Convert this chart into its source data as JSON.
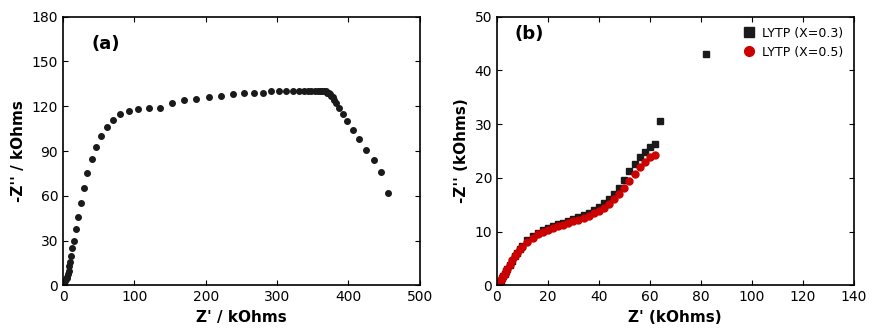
{
  "plot_a": {
    "label": "(a)",
    "xlabel": "Z' / kOhms",
    "ylabel": "-Z'' / kOhms",
    "xlim": [
      0,
      500
    ],
    "ylim": [
      0,
      180
    ],
    "xticks": [
      0,
      100,
      200,
      300,
      400,
      500
    ],
    "yticks": [
      0,
      30,
      60,
      90,
      120,
      150,
      180
    ],
    "color": "#1a1a1a",
    "marker": "o",
    "markersize": 4,
    "x": [
      1,
      2,
      3,
      4,
      5,
      6,
      7,
      8,
      9,
      10,
      11,
      13,
      15,
      18,
      21,
      25,
      29,
      34,
      40,
      46,
      53,
      61,
      70,
      80,
      92,
      105,
      120,
      136,
      153,
      170,
      187,
      205,
      222,
      238,
      253,
      267,
      280,
      292,
      303,
      313,
      322,
      330,
      337,
      343,
      348,
      353,
      357,
      360,
      363,
      366,
      368,
      370,
      372,
      374,
      376,
      378,
      380,
      383,
      387,
      392,
      398,
      406,
      415,
      425,
      436,
      446,
      455
    ],
    "y": [
      1,
      2,
      3,
      4,
      5,
      6,
      8,
      10,
      13,
      16,
      20,
      25,
      30,
      38,
      46,
      55,
      65,
      75,
      85,
      93,
      100,
      106,
      111,
      115,
      117,
      118,
      119,
      119,
      122,
      124,
      125,
      126,
      127,
      128,
      129,
      129,
      129,
      130,
      130,
      130,
      130,
      130,
      130,
      130,
      130,
      130,
      130,
      130,
      130,
      130,
      130,
      129,
      129,
      128,
      127,
      126,
      124,
      122,
      119,
      115,
      110,
      104,
      98,
      91,
      84,
      76,
      62
    ]
  },
  "plot_b": {
    "label": "(b)",
    "xlabel": "Z' (kOhms)",
    "ylabel": "-Z'' (kOhms)",
    "xlim": [
      0,
      140
    ],
    "ylim": [
      0,
      50
    ],
    "xticks": [
      0,
      20,
      40,
      60,
      80,
      100,
      120,
      140
    ],
    "yticks": [
      0,
      10,
      20,
      30,
      40,
      50
    ],
    "series": [
      {
        "label": "LYTP (X=0.3)",
        "color": "#1a1a1a",
        "marker": "s",
        "markersize": 5,
        "x": [
          0.5,
          1,
          1.5,
          2,
          2.5,
          3,
          3.5,
          4,
          5,
          6,
          7,
          8,
          9,
          10,
          12,
          14,
          16,
          18,
          20,
          22,
          24,
          26,
          28,
          30,
          32,
          34,
          36,
          38,
          40,
          42,
          44,
          46,
          48,
          50,
          52,
          54,
          56,
          58,
          60,
          62,
          64,
          82
        ],
        "y": [
          0.3,
          0.6,
          0.9,
          1.3,
          1.7,
          2.1,
          2.6,
          3.0,
          3.8,
          4.6,
          5.4,
          6.1,
          6.8,
          7.4,
          8.4,
          9.2,
          9.8,
          10.3,
          10.7,
          11.1,
          11.4,
          11.7,
          12.0,
          12.3,
          12.7,
          13.1,
          13.5,
          14.0,
          14.6,
          15.3,
          16.1,
          17.0,
          18.2,
          19.6,
          21.2,
          22.5,
          23.8,
          24.8,
          25.7,
          26.3,
          30.5,
          43.0
        ]
      },
      {
        "label": "LYTP (X=0.5)",
        "color": "#cc0000",
        "marker": "o",
        "markersize": 5,
        "x": [
          0.5,
          1,
          1.5,
          2,
          2.5,
          3,
          3.5,
          4,
          5,
          6,
          7,
          8,
          9,
          10,
          12,
          14,
          16,
          18,
          20,
          22,
          24,
          26,
          28,
          30,
          32,
          34,
          36,
          38,
          40,
          42,
          44,
          46,
          48,
          50,
          52,
          54,
          56,
          58,
          60,
          62
        ],
        "y": [
          0.3,
          0.6,
          1.0,
          1.4,
          1.8,
          2.2,
          2.7,
          3.1,
          3.9,
          4.7,
          5.4,
          6.1,
          6.7,
          7.2,
          8.1,
          8.9,
          9.5,
          10.0,
          10.4,
          10.7,
          11.0,
          11.3,
          11.6,
          11.9,
          12.2,
          12.5,
          12.9,
          13.4,
          13.9,
          14.5,
          15.2,
          16.0,
          17.0,
          18.2,
          19.5,
          20.8,
          22.0,
          23.0,
          23.9,
          24.3
        ]
      }
    ]
  },
  "fig_bgcolor": "#ffffff",
  "axes_bgcolor": "#ffffff",
  "title_fontsize": 13,
  "label_fontsize": 11,
  "tick_fontsize": 10
}
